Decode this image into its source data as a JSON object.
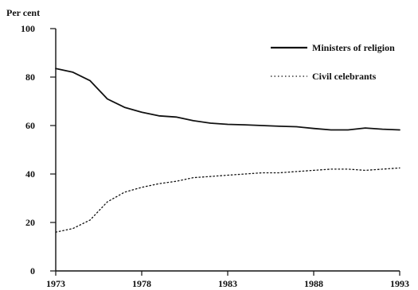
{
  "chart_data": {
    "type": "line",
    "title": "",
    "xlabel": "",
    "ylabel": "Per cent",
    "xlim": [
      1973,
      1993
    ],
    "ylim": [
      0,
      100
    ],
    "x_ticks": [
      1973,
      1978,
      1983,
      1988,
      1993
    ],
    "y_ticks": [
      0,
      20,
      40,
      60,
      80,
      100
    ],
    "grid": false,
    "legend_position": "top-right",
    "x": [
      1973,
      1974,
      1975,
      1976,
      1977,
      1978,
      1979,
      1980,
      1981,
      1982,
      1983,
      1984,
      1985,
      1986,
      1987,
      1988,
      1989,
      1990,
      1991,
      1992,
      1993
    ],
    "series": [
      {
        "name": "Ministers of religion",
        "style": "solid",
        "values": [
          83.5,
          82,
          78.5,
          71,
          67.5,
          65.5,
          64,
          63.5,
          62,
          61,
          60.5,
          60.3,
          60,
          59.7,
          59.5,
          58.8,
          58.2,
          58.2,
          59,
          58.5,
          58.2
        ]
      },
      {
        "name": "Civil celebrants",
        "style": "dotted",
        "values": [
          16,
          17.5,
          21,
          28.5,
          32.5,
          34.5,
          36,
          37,
          38.5,
          39,
          39.5,
          40,
          40.5,
          40.5,
          41,
          41.5,
          42,
          42,
          41.5,
          42,
          42.5
        ]
      }
    ]
  }
}
